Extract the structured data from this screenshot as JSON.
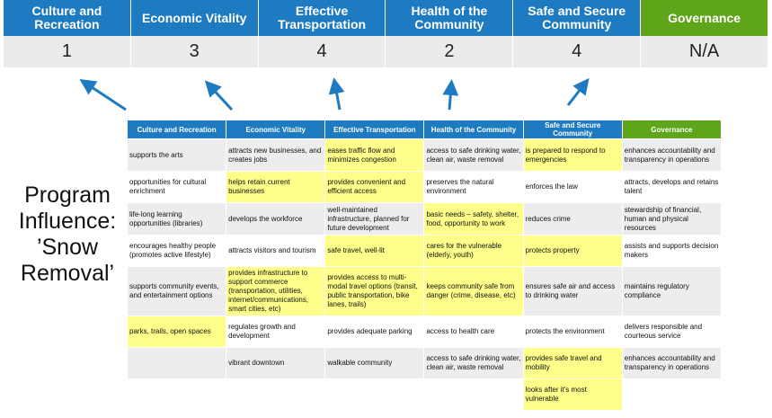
{
  "colors": {
    "header_blue": "#1f7bc1",
    "governance_green": "#5ea51a",
    "highlight_yellow": "#fefe8a",
    "arrow_blue": "#1f7bc1"
  },
  "scores": [
    {
      "label": "Culture and Recreation",
      "score": "1"
    },
    {
      "label": "Economic Vitality",
      "score": "3"
    },
    {
      "label": "Effective Transportation",
      "score": "4"
    },
    {
      "label": "Health of the Community",
      "score": "2"
    },
    {
      "label": "Safe and Secure Community",
      "score": "4"
    },
    {
      "label": "Governance",
      "score": "N/A"
    }
  ],
  "side_label": {
    "line1": "Program",
    "line2": "Influence:",
    "line3": "’Snow",
    "line4": "Removal’"
  },
  "table": {
    "headers": [
      "Culture and Recreation",
      "Economic Vitality",
      "Effective Transportation",
      "Health of the Community",
      "Safe and Secure Community",
      "Governance"
    ],
    "rows": [
      {
        "cells": [
          "supports the arts",
          "attracts new businesses, and creates jobs",
          "eases traffic flow and minimizes congestion",
          "access to safe drinking water, clean air, waste removal",
          "is prepared to respond to emergencies",
          "enhances accountability and transparency in operations"
        ],
        "highlighted": [
          2,
          4
        ]
      },
      {
        "cells": [
          "opportunities for cultural enrichment",
          "helps retain current businesses",
          "provides convenient and efficient access",
          "preserves the natural environment",
          "enforces the law",
          "attracts, develops and retains talent"
        ],
        "highlighted": [
          1,
          2
        ]
      },
      {
        "cells": [
          "life-long learning opportunities (libraries)",
          "develops the workforce",
          "well-maintained infrastructure, planned for future development",
          "basic needs – safety, shelter, food, opportunity to work",
          "reduces crime",
          "stewardship of financial, human and physical resources"
        ],
        "highlighted": [
          3
        ]
      },
      {
        "cells": [
          "encourages healthy people (promotes active lifestyle)",
          "attracts visitors and tourism",
          "safe travel, well-lit",
          "cares for the vulnerable (elderly, youth)",
          "protects property",
          "assists and supports decision makers"
        ],
        "highlighted": [
          2,
          3,
          4
        ]
      },
      {
        "cells": [
          "supports community events, and entertainment options",
          "provides infrastructure to support commerce (transportation, utilities, internet/communications, smart cities, etc)",
          "provides access to multi-modal travel options (transit, public transportation, bike lanes, trails)",
          "keeps community safe from danger (crime, disease, etc)",
          "ensures safe air and access to drinking water",
          "maintains regulatory compliance"
        ],
        "highlighted": [
          1,
          2,
          3
        ]
      },
      {
        "cells": [
          "parks, trails, open spaces",
          "regulates growth and development",
          "provides adequate parking",
          "access to health care",
          "protects the environment",
          "delivers responsible and courteous service"
        ],
        "highlighted": [
          0
        ]
      },
      {
        "cells": [
          "",
          "vibrant downtown",
          "walkable community",
          "access to safe drinking water, clean air, waste removal",
          "provides safe travel and mobility",
          "enhances accountability and transparency in operations"
        ],
        "highlighted": [
          4
        ]
      },
      {
        "cells": [
          "",
          "",
          "",
          "",
          "looks after it's most vulnerable",
          ""
        ],
        "highlighted": [
          4
        ]
      }
    ]
  }
}
